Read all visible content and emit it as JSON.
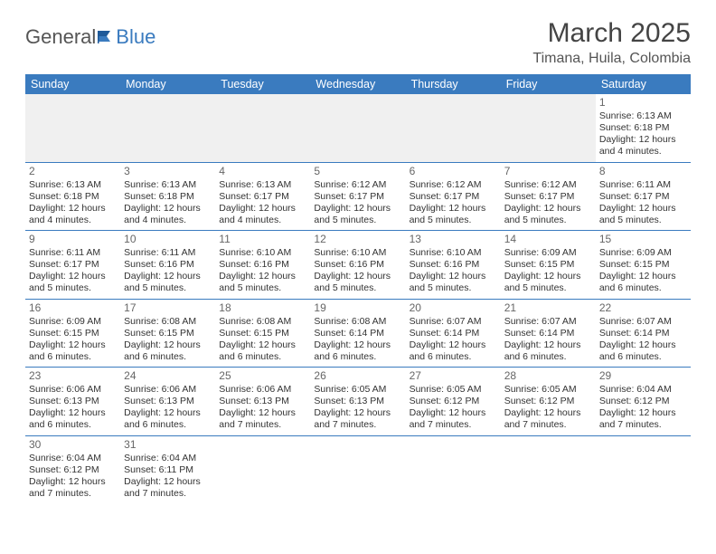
{
  "logo": {
    "text1": "General",
    "text2": "Blue"
  },
  "title": "March 2025",
  "location": "Timana, Huila, Colombia",
  "colors": {
    "header_bg": "#3a7bbf",
    "header_text": "#ffffff",
    "cell_border": "#3a7bbf",
    "empty_bg": "#f0f0f0",
    "text": "#333333"
  },
  "day_headers": [
    "Sunday",
    "Monday",
    "Tuesday",
    "Wednesday",
    "Thursday",
    "Friday",
    "Saturday"
  ],
  "weeks": [
    [
      null,
      null,
      null,
      null,
      null,
      null,
      {
        "n": "1",
        "sunrise": "Sunrise: 6:13 AM",
        "sunset": "Sunset: 6:18 PM",
        "daylight1": "Daylight: 12 hours",
        "daylight2": "and 4 minutes."
      }
    ],
    [
      {
        "n": "2",
        "sunrise": "Sunrise: 6:13 AM",
        "sunset": "Sunset: 6:18 PM",
        "daylight1": "Daylight: 12 hours",
        "daylight2": "and 4 minutes."
      },
      {
        "n": "3",
        "sunrise": "Sunrise: 6:13 AM",
        "sunset": "Sunset: 6:18 PM",
        "daylight1": "Daylight: 12 hours",
        "daylight2": "and 4 minutes."
      },
      {
        "n": "4",
        "sunrise": "Sunrise: 6:13 AM",
        "sunset": "Sunset: 6:17 PM",
        "daylight1": "Daylight: 12 hours",
        "daylight2": "and 4 minutes."
      },
      {
        "n": "5",
        "sunrise": "Sunrise: 6:12 AM",
        "sunset": "Sunset: 6:17 PM",
        "daylight1": "Daylight: 12 hours",
        "daylight2": "and 5 minutes."
      },
      {
        "n": "6",
        "sunrise": "Sunrise: 6:12 AM",
        "sunset": "Sunset: 6:17 PM",
        "daylight1": "Daylight: 12 hours",
        "daylight2": "and 5 minutes."
      },
      {
        "n": "7",
        "sunrise": "Sunrise: 6:12 AM",
        "sunset": "Sunset: 6:17 PM",
        "daylight1": "Daylight: 12 hours",
        "daylight2": "and 5 minutes."
      },
      {
        "n": "8",
        "sunrise": "Sunrise: 6:11 AM",
        "sunset": "Sunset: 6:17 PM",
        "daylight1": "Daylight: 12 hours",
        "daylight2": "and 5 minutes."
      }
    ],
    [
      {
        "n": "9",
        "sunrise": "Sunrise: 6:11 AM",
        "sunset": "Sunset: 6:17 PM",
        "daylight1": "Daylight: 12 hours",
        "daylight2": "and 5 minutes."
      },
      {
        "n": "10",
        "sunrise": "Sunrise: 6:11 AM",
        "sunset": "Sunset: 6:16 PM",
        "daylight1": "Daylight: 12 hours",
        "daylight2": "and 5 minutes."
      },
      {
        "n": "11",
        "sunrise": "Sunrise: 6:10 AM",
        "sunset": "Sunset: 6:16 PM",
        "daylight1": "Daylight: 12 hours",
        "daylight2": "and 5 minutes."
      },
      {
        "n": "12",
        "sunrise": "Sunrise: 6:10 AM",
        "sunset": "Sunset: 6:16 PM",
        "daylight1": "Daylight: 12 hours",
        "daylight2": "and 5 minutes."
      },
      {
        "n": "13",
        "sunrise": "Sunrise: 6:10 AM",
        "sunset": "Sunset: 6:16 PM",
        "daylight1": "Daylight: 12 hours",
        "daylight2": "and 5 minutes."
      },
      {
        "n": "14",
        "sunrise": "Sunrise: 6:09 AM",
        "sunset": "Sunset: 6:15 PM",
        "daylight1": "Daylight: 12 hours",
        "daylight2": "and 5 minutes."
      },
      {
        "n": "15",
        "sunrise": "Sunrise: 6:09 AM",
        "sunset": "Sunset: 6:15 PM",
        "daylight1": "Daylight: 12 hours",
        "daylight2": "and 6 minutes."
      }
    ],
    [
      {
        "n": "16",
        "sunrise": "Sunrise: 6:09 AM",
        "sunset": "Sunset: 6:15 PM",
        "daylight1": "Daylight: 12 hours",
        "daylight2": "and 6 minutes."
      },
      {
        "n": "17",
        "sunrise": "Sunrise: 6:08 AM",
        "sunset": "Sunset: 6:15 PM",
        "daylight1": "Daylight: 12 hours",
        "daylight2": "and 6 minutes."
      },
      {
        "n": "18",
        "sunrise": "Sunrise: 6:08 AM",
        "sunset": "Sunset: 6:15 PM",
        "daylight1": "Daylight: 12 hours",
        "daylight2": "and 6 minutes."
      },
      {
        "n": "19",
        "sunrise": "Sunrise: 6:08 AM",
        "sunset": "Sunset: 6:14 PM",
        "daylight1": "Daylight: 12 hours",
        "daylight2": "and 6 minutes."
      },
      {
        "n": "20",
        "sunrise": "Sunrise: 6:07 AM",
        "sunset": "Sunset: 6:14 PM",
        "daylight1": "Daylight: 12 hours",
        "daylight2": "and 6 minutes."
      },
      {
        "n": "21",
        "sunrise": "Sunrise: 6:07 AM",
        "sunset": "Sunset: 6:14 PM",
        "daylight1": "Daylight: 12 hours",
        "daylight2": "and 6 minutes."
      },
      {
        "n": "22",
        "sunrise": "Sunrise: 6:07 AM",
        "sunset": "Sunset: 6:14 PM",
        "daylight1": "Daylight: 12 hours",
        "daylight2": "and 6 minutes."
      }
    ],
    [
      {
        "n": "23",
        "sunrise": "Sunrise: 6:06 AM",
        "sunset": "Sunset: 6:13 PM",
        "daylight1": "Daylight: 12 hours",
        "daylight2": "and 6 minutes."
      },
      {
        "n": "24",
        "sunrise": "Sunrise: 6:06 AM",
        "sunset": "Sunset: 6:13 PM",
        "daylight1": "Daylight: 12 hours",
        "daylight2": "and 6 minutes."
      },
      {
        "n": "25",
        "sunrise": "Sunrise: 6:06 AM",
        "sunset": "Sunset: 6:13 PM",
        "daylight1": "Daylight: 12 hours",
        "daylight2": "and 7 minutes."
      },
      {
        "n": "26",
        "sunrise": "Sunrise: 6:05 AM",
        "sunset": "Sunset: 6:13 PM",
        "daylight1": "Daylight: 12 hours",
        "daylight2": "and 7 minutes."
      },
      {
        "n": "27",
        "sunrise": "Sunrise: 6:05 AM",
        "sunset": "Sunset: 6:12 PM",
        "daylight1": "Daylight: 12 hours",
        "daylight2": "and 7 minutes."
      },
      {
        "n": "28",
        "sunrise": "Sunrise: 6:05 AM",
        "sunset": "Sunset: 6:12 PM",
        "daylight1": "Daylight: 12 hours",
        "daylight2": "and 7 minutes."
      },
      {
        "n": "29",
        "sunrise": "Sunrise: 6:04 AM",
        "sunset": "Sunset: 6:12 PM",
        "daylight1": "Daylight: 12 hours",
        "daylight2": "and 7 minutes."
      }
    ],
    [
      {
        "n": "30",
        "sunrise": "Sunrise: 6:04 AM",
        "sunset": "Sunset: 6:12 PM",
        "daylight1": "Daylight: 12 hours",
        "daylight2": "and 7 minutes."
      },
      {
        "n": "31",
        "sunrise": "Sunrise: 6:04 AM",
        "sunset": "Sunset: 6:11 PM",
        "daylight1": "Daylight: 12 hours",
        "daylight2": "and 7 minutes."
      },
      null,
      null,
      null,
      null,
      null
    ]
  ]
}
